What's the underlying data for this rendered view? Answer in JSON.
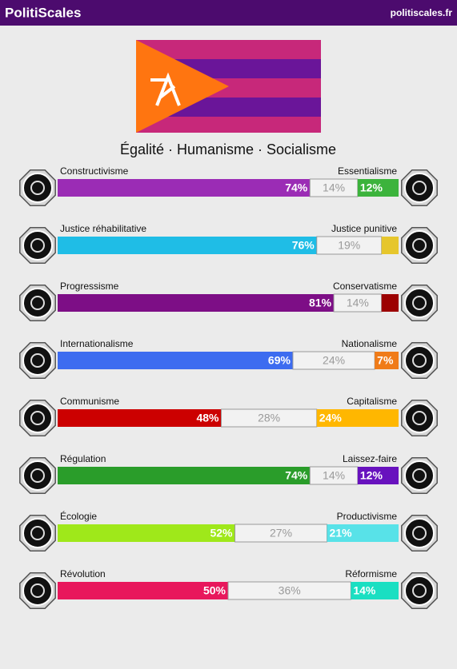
{
  "header": {
    "title": "PolitiScales",
    "site": "politiscales.fr"
  },
  "slogan": "Égalité · Humanisme · Socialisme",
  "axes": [
    {
      "left": "Constructivisme",
      "right": "Essentialisme",
      "values": [
        74,
        14,
        12
      ],
      "value_labels": [
        "74%",
        "14%",
        "12%"
      ],
      "colors": [
        "#9b2cb5",
        "#3cb33c"
      ]
    },
    {
      "left": "Justice réhabilitative",
      "right": "Justice punitive",
      "values": [
        76,
        19,
        5
      ],
      "value_labels": [
        "76%",
        "19%",
        null
      ],
      "colors": [
        "#1fbde6",
        "#e6c62c"
      ]
    },
    {
      "left": "Progressisme",
      "right": "Conservatisme",
      "values": [
        81,
        14,
        5
      ],
      "value_labels": [
        "81%",
        "14%",
        null
      ],
      "colors": [
        "#7d0e86",
        "#9c0202"
      ]
    },
    {
      "left": "Internationalisme",
      "right": "Nationalisme",
      "values": [
        69,
        24,
        7
      ],
      "value_labels": [
        "69%",
        "24%",
        "7%"
      ],
      "colors": [
        "#3d6cf0",
        "#f07b18"
      ]
    },
    {
      "left": "Communisme",
      "right": "Capitalisme",
      "values": [
        48,
        28,
        24
      ],
      "value_labels": [
        "48%",
        "28%",
        "24%"
      ],
      "colors": [
        "#cc0000",
        "#ffb700"
      ]
    },
    {
      "left": "Régulation",
      "right": "Laissez-faire",
      "values": [
        74,
        14,
        12
      ],
      "value_labels": [
        "74%",
        "14%",
        "12%"
      ],
      "colors": [
        "#2a9d2a",
        "#6812be"
      ]
    },
    {
      "left": "Écologie",
      "right": "Productivisme",
      "values": [
        52,
        27,
        21
      ],
      "value_labels": [
        "52%",
        "27%",
        "21%"
      ],
      "colors": [
        "#9fe81a",
        "#58e2e8"
      ]
    },
    {
      "left": "Révolution",
      "right": "Réformisme",
      "values": [
        50,
        36,
        14
      ],
      "value_labels": [
        "50%",
        "36%",
        "14%"
      ],
      "colors": [
        "#e8175c",
        "#1adfc2"
      ]
    }
  ]
}
